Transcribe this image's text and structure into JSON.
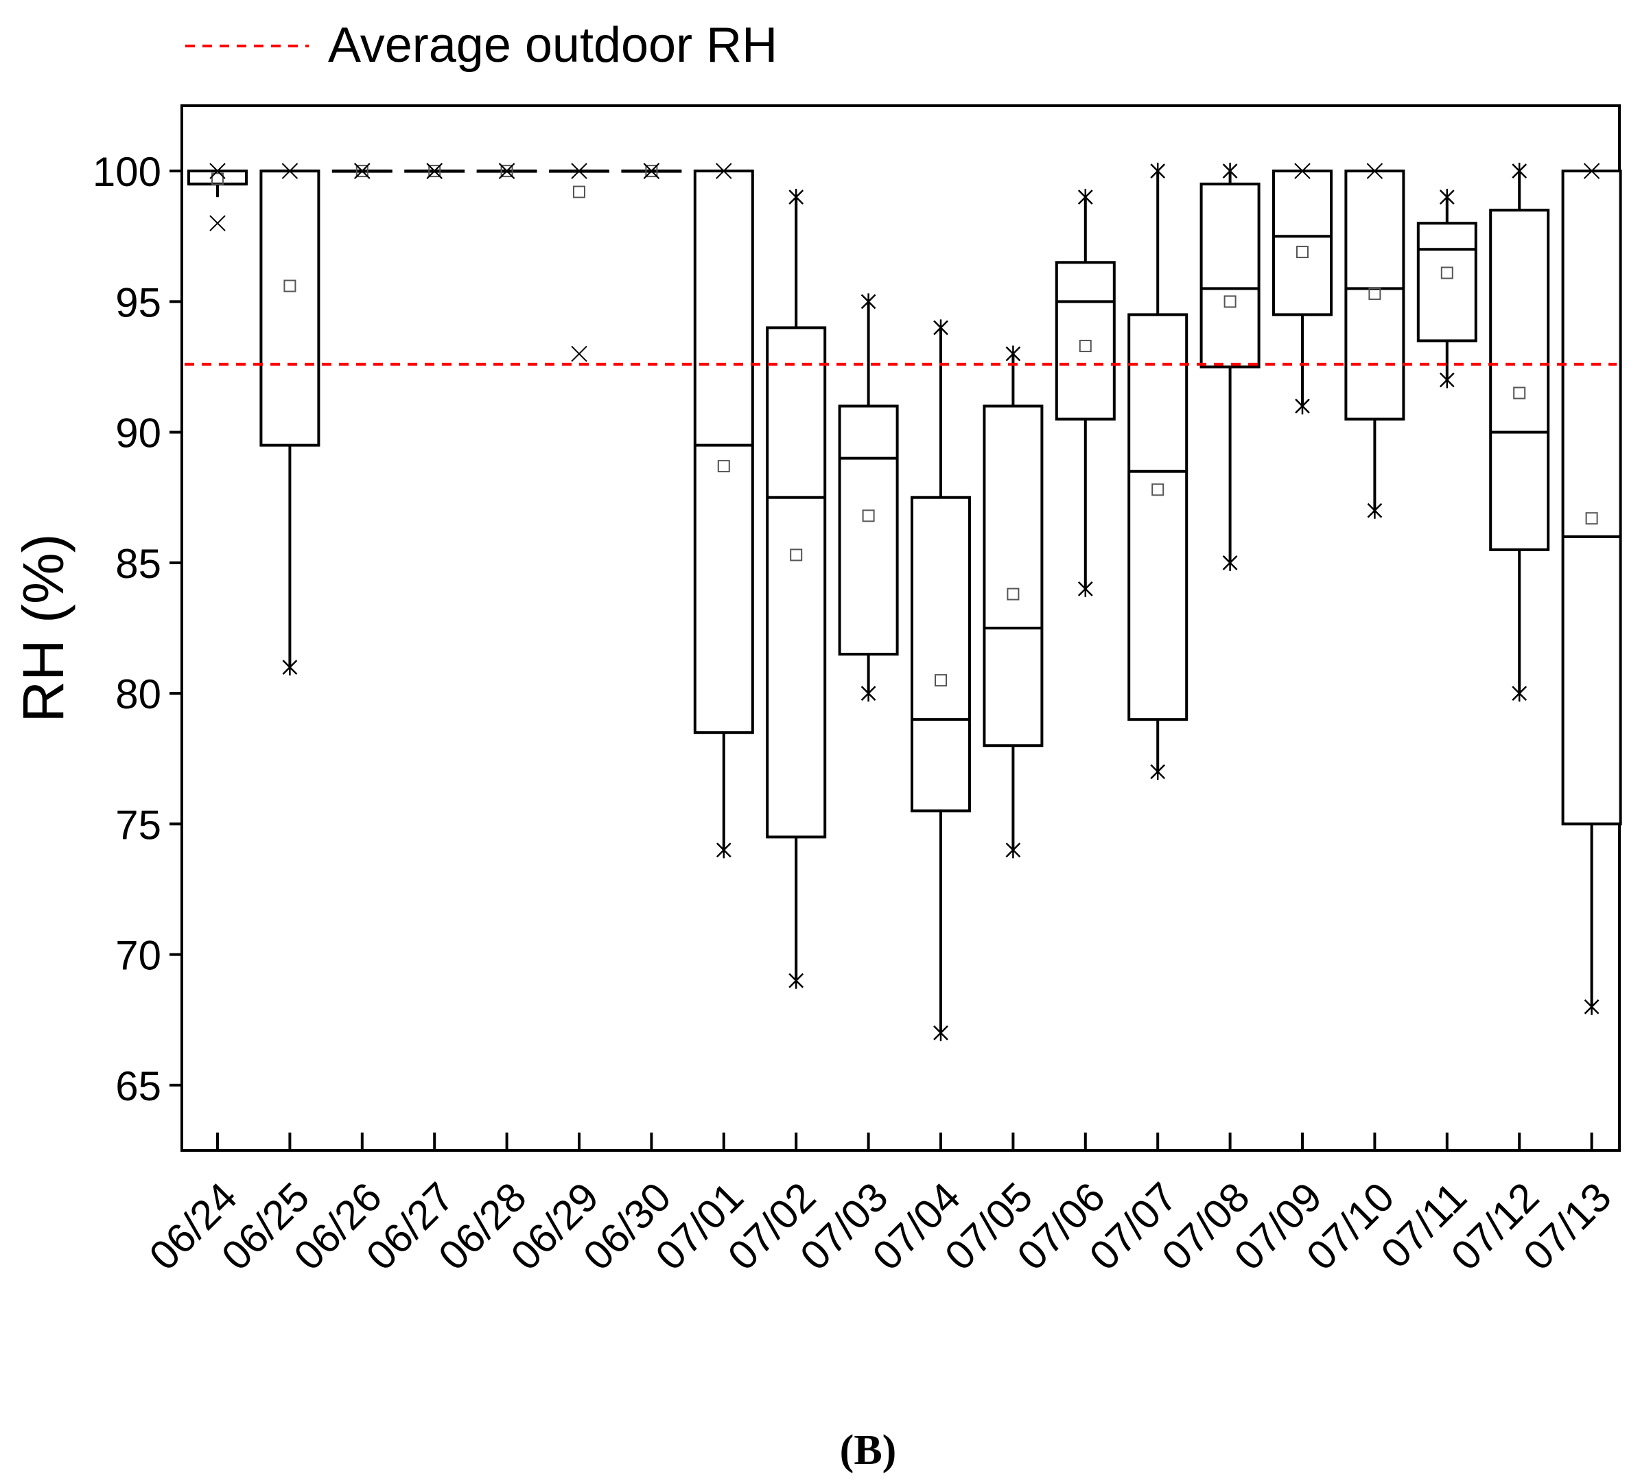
{
  "chart_data": {
    "type": "box",
    "ylabel": "RH (%)",
    "ylim": [
      62.5,
      102.5
    ],
    "yticks": [
      65,
      70,
      75,
      80,
      85,
      90,
      95,
      100
    ],
    "categories": [
      "06/24",
      "06/25",
      "06/26",
      "06/27",
      "06/28",
      "06/29",
      "06/30",
      "07/01",
      "07/02",
      "07/03",
      "07/04",
      "07/05",
      "07/06",
      "07/07",
      "07/08",
      "07/09",
      "07/10",
      "07/11",
      "07/12",
      "07/13"
    ],
    "boxes": [
      {
        "q1": 99.5,
        "median": 99.5,
        "q3": 100,
        "whisker_low": 99,
        "whisker_high": 100,
        "mean": 99.7,
        "min": 98,
        "max": 100
      },
      {
        "q1": 89.5,
        "median": 100,
        "q3": 100,
        "whisker_low": 81,
        "whisker_high": 100,
        "mean": 95.6,
        "min": 81,
        "max": 100
      },
      {
        "q1": 100,
        "median": 100,
        "q3": 100,
        "whisker_low": 100,
        "whisker_high": 100,
        "mean": 100,
        "min": 100,
        "max": 100
      },
      {
        "q1": 100,
        "median": 100,
        "q3": 100,
        "whisker_low": 100,
        "whisker_high": 100,
        "mean": 100,
        "min": 100,
        "max": 100
      },
      {
        "q1": 100,
        "median": 100,
        "q3": 100,
        "whisker_low": 100,
        "whisker_high": 100,
        "mean": 100,
        "min": 100,
        "max": 100
      },
      {
        "q1": 100,
        "median": 100,
        "q3": 100,
        "whisker_low": 100,
        "whisker_high": 100,
        "mean": 99.2,
        "min": 93,
        "max": 100
      },
      {
        "q1": 100,
        "median": 100,
        "q3": 100,
        "whisker_low": 100,
        "whisker_high": 100,
        "mean": 100,
        "min": 100,
        "max": 100
      },
      {
        "q1": 78.5,
        "median": 89.5,
        "q3": 100,
        "whisker_low": 74,
        "whisker_high": 100,
        "mean": 88.7,
        "min": 74,
        "max": 100
      },
      {
        "q1": 74.5,
        "median": 87.5,
        "q3": 94,
        "whisker_low": 69,
        "whisker_high": 99,
        "mean": 85.3,
        "min": 69,
        "max": 99
      },
      {
        "q1": 81.5,
        "median": 89,
        "q3": 91,
        "whisker_low": 80,
        "whisker_high": 95,
        "mean": 86.8,
        "min": 80,
        "max": 95
      },
      {
        "q1": 75.5,
        "median": 79,
        "q3": 87.5,
        "whisker_low": 67,
        "whisker_high": 94,
        "mean": 80.5,
        "min": 67,
        "max": 94
      },
      {
        "q1": 78,
        "median": 82.5,
        "q3": 91,
        "whisker_low": 74,
        "whisker_high": 93,
        "mean": 83.8,
        "min": 74,
        "max": 93
      },
      {
        "q1": 90.5,
        "median": 95,
        "q3": 96.5,
        "whisker_low": 84,
        "whisker_high": 99,
        "mean": 93.3,
        "min": 84,
        "max": 99
      },
      {
        "q1": 79,
        "median": 88.5,
        "q3": 94.5,
        "whisker_low": 77,
        "whisker_high": 100,
        "mean": 87.8,
        "min": 77,
        "max": 100
      },
      {
        "q1": 92.5,
        "median": 95.5,
        "q3": 99.5,
        "whisker_low": 85,
        "whisker_high": 100,
        "mean": 95,
        "min": 85,
        "max": 100
      },
      {
        "q1": 94.5,
        "median": 97.5,
        "q3": 100,
        "whisker_low": 91,
        "whisker_high": 100,
        "mean": 96.9,
        "min": 91,
        "max": 100
      },
      {
        "q1": 90.5,
        "median": 95.5,
        "q3": 100,
        "whisker_low": 87,
        "whisker_high": 100,
        "mean": 95.3,
        "min": 87,
        "max": 100
      },
      {
        "q1": 93.5,
        "median": 97,
        "q3": 98,
        "whisker_low": 92,
        "whisker_high": 99,
        "mean": 96.1,
        "min": 92,
        "max": 99
      },
      {
        "q1": 85.5,
        "median": 90,
        "q3": 98.5,
        "whisker_low": 80,
        "whisker_high": 100,
        "mean": 91.5,
        "min": 80,
        "max": 100
      },
      {
        "q1": 75,
        "median": 86,
        "q3": 100,
        "whisker_low": 68,
        "whisker_high": 100,
        "mean": 86.7,
        "min": 68,
        "max": 100
      }
    ],
    "reference_line": {
      "label": "Average outdoor RH",
      "value": 92.6,
      "color": "#ff0000",
      "style": "dashed"
    },
    "legend": {
      "position": "top-left",
      "entries": [
        "Average outdoor RH"
      ]
    },
    "caption": "(B)"
  }
}
